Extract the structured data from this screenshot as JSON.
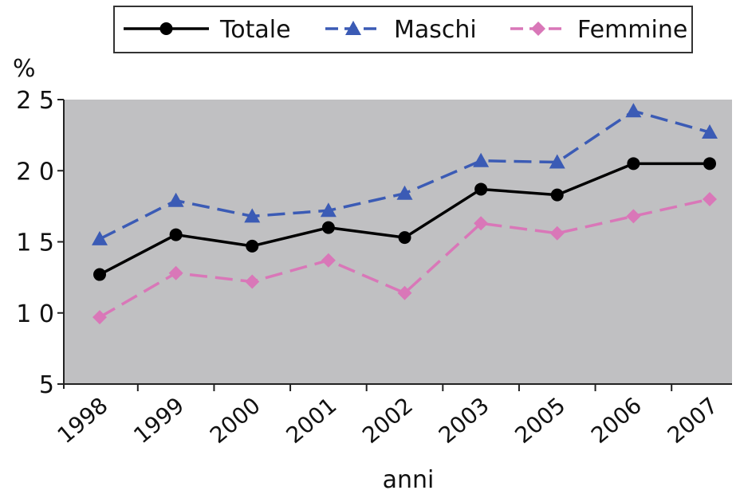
{
  "chart_data": {
    "type": "line",
    "title": "",
    "xlabel": "anni",
    "ylabel": "%",
    "categories": [
      "1998",
      "1999",
      "2000",
      "2001",
      "2002",
      "2003",
      "2005",
      "2006",
      "2007"
    ],
    "ylim": [
      5,
      25
    ],
    "yticks": [
      "5",
      "1 0",
      "1 5",
      "2 0",
      "2 5"
    ],
    "ytick_values": [
      5,
      10,
      15,
      20,
      25
    ],
    "grid": false,
    "legend_position": "top",
    "plot_background": "#c0c0c2",
    "series": [
      {
        "name": "Totale",
        "values": [
          12.7,
          15.5,
          14.7,
          16.0,
          15.3,
          18.7,
          18.3,
          20.5,
          20.5
        ],
        "color": "#000000",
        "marker": "circle",
        "dashed": false
      },
      {
        "name": "Maschi",
        "values": [
          15.2,
          17.9,
          16.8,
          17.2,
          18.4,
          20.7,
          20.6,
          24.2,
          22.7
        ],
        "color": "#3b5bb5",
        "marker": "triangle",
        "dashed": true
      },
      {
        "name": "Femmine",
        "values": [
          9.7,
          12.8,
          12.2,
          13.7,
          11.4,
          16.3,
          15.6,
          16.8,
          18.0
        ],
        "color": "#d977b8",
        "marker": "diamond",
        "dashed": true
      }
    ]
  }
}
